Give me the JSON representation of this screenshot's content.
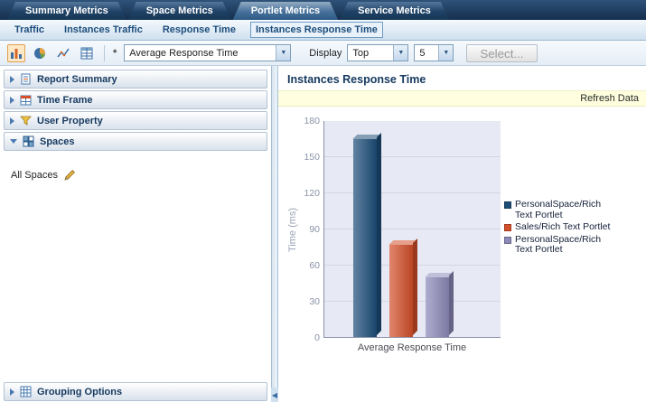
{
  "top_tabs": {
    "items": [
      {
        "label": "Summary Metrics"
      },
      {
        "label": "Space Metrics"
      },
      {
        "label": "Portlet Metrics"
      },
      {
        "label": "Service Metrics"
      }
    ]
  },
  "sub_tabs": {
    "items": [
      {
        "label": "Traffic"
      },
      {
        "label": "Instances Traffic"
      },
      {
        "label": "Response Time"
      },
      {
        "label": "Instances Response Time"
      }
    ]
  },
  "toolbar": {
    "required_marker": "*",
    "metric_select_value": "Average Response Time",
    "display_label": "Display",
    "top_select_value": "Top",
    "count_select_value": "5",
    "select_button_label": "Select...",
    "icons": [
      "bar-chart",
      "pie-chart",
      "line-chart",
      "table"
    ]
  },
  "sidebar": {
    "sections": [
      {
        "label": "Report Summary"
      },
      {
        "label": "Time Frame"
      },
      {
        "label": "User Property"
      },
      {
        "label": "Spaces"
      }
    ],
    "spaces_panel": {
      "all_spaces_label": "All Spaces"
    },
    "grouping_label": "Grouping Options"
  },
  "main": {
    "title": "Instances Response Time",
    "refresh_label": "Refresh Data"
  },
  "chart_data": {
    "type": "bar",
    "title": "Instances Response Time",
    "categories": [
      "Average Response Time"
    ],
    "series": [
      {
        "name": "PersonalSpace/Rich Text Portlet",
        "values": [
          165
        ],
        "color": "#1d4e79"
      },
      {
        "name": "Sales/Rich Text Portlet",
        "values": [
          77
        ],
        "color": "#d4502b"
      },
      {
        "name": "PersonalSpace/Rich Text Portlet",
        "values": [
          50
        ],
        "color": "#8d89b9"
      }
    ],
    "xlabel": "Average Response Time",
    "ylabel": "Time (ms)",
    "ylim": [
      0,
      180
    ],
    "yticks": [
      0,
      30,
      60,
      90,
      120,
      150,
      180
    ],
    "legend_position": "right",
    "grid": false
  }
}
